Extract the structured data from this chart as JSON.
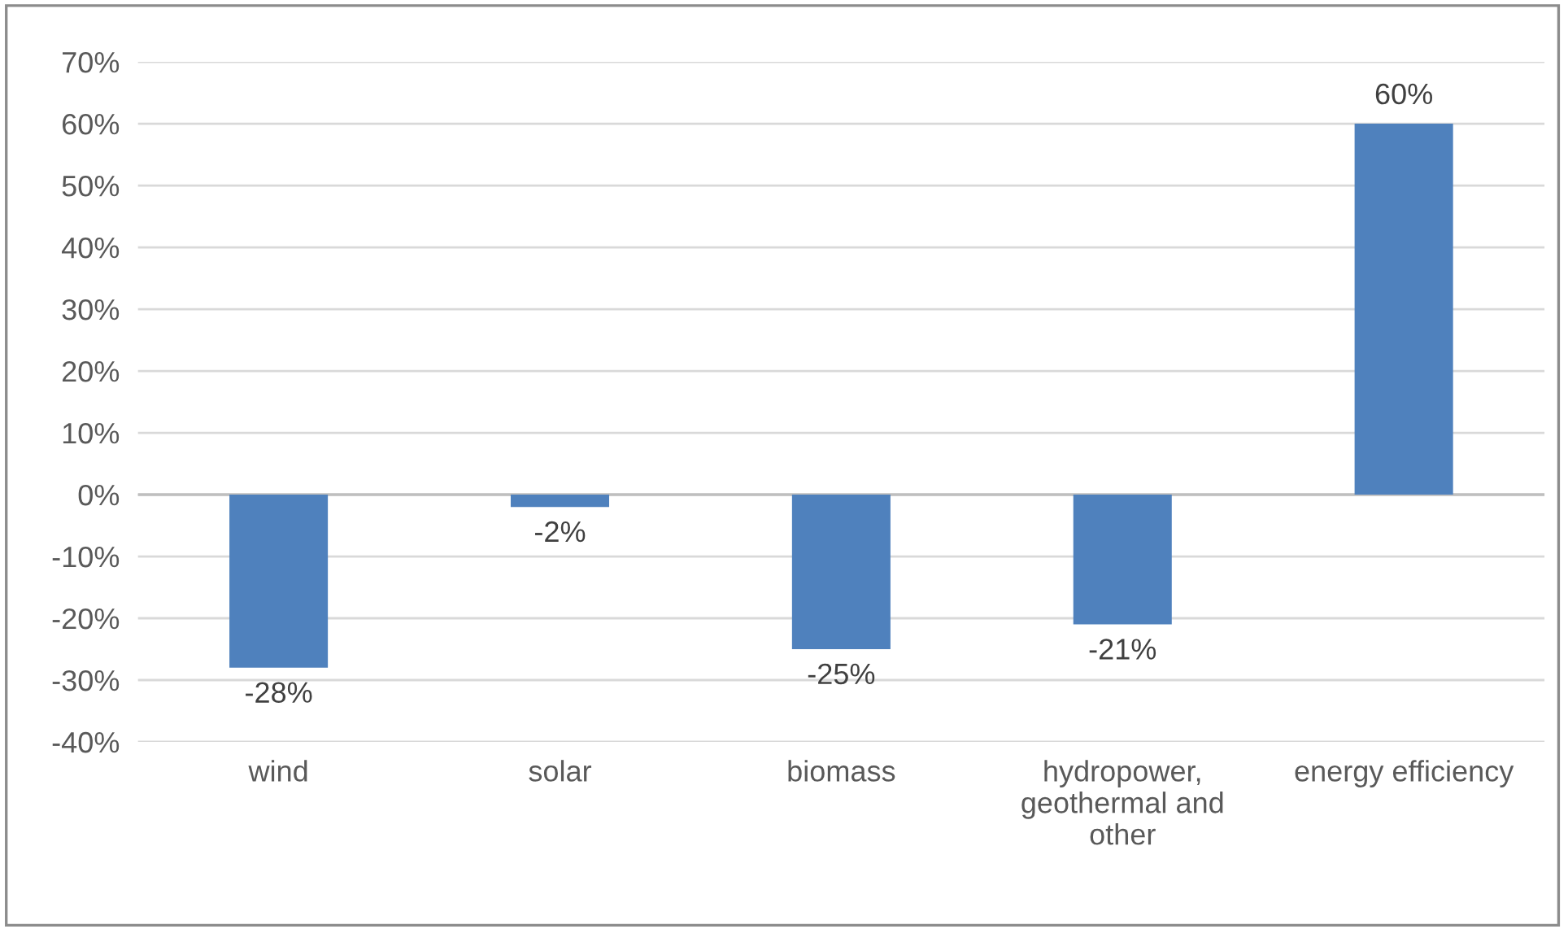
{
  "chart_data": {
    "type": "bar",
    "categories": [
      "wind",
      "solar",
      "biomass",
      "hydropower,\ngeothermal and\nother",
      "energy efficiency"
    ],
    "values": [
      -28,
      -2,
      -25,
      -21,
      60
    ],
    "value_labels": [
      "-28%",
      "-2%",
      "-25%",
      "-21%",
      "60%"
    ],
    "color": "#4f81bd",
    "ylim": [
      -40,
      70
    ],
    "yticks": [
      {
        "value": -40,
        "label": "-40%"
      },
      {
        "value": -30,
        "label": "-30%"
      },
      {
        "value": -20,
        "label": "-20%"
      },
      {
        "value": -10,
        "label": "-10%"
      },
      {
        "value": 0,
        "label": "0%"
      },
      {
        "value": 10,
        "label": "10%"
      },
      {
        "value": 20,
        "label": "20%"
      },
      {
        "value": 30,
        "label": "30%"
      },
      {
        "value": 40,
        "label": "40%"
      },
      {
        "value": 50,
        "label": "50%"
      },
      {
        "value": 60,
        "label": "60%"
      },
      {
        "value": 70,
        "label": "70%"
      }
    ],
    "grid": "y",
    "legend": false
  }
}
